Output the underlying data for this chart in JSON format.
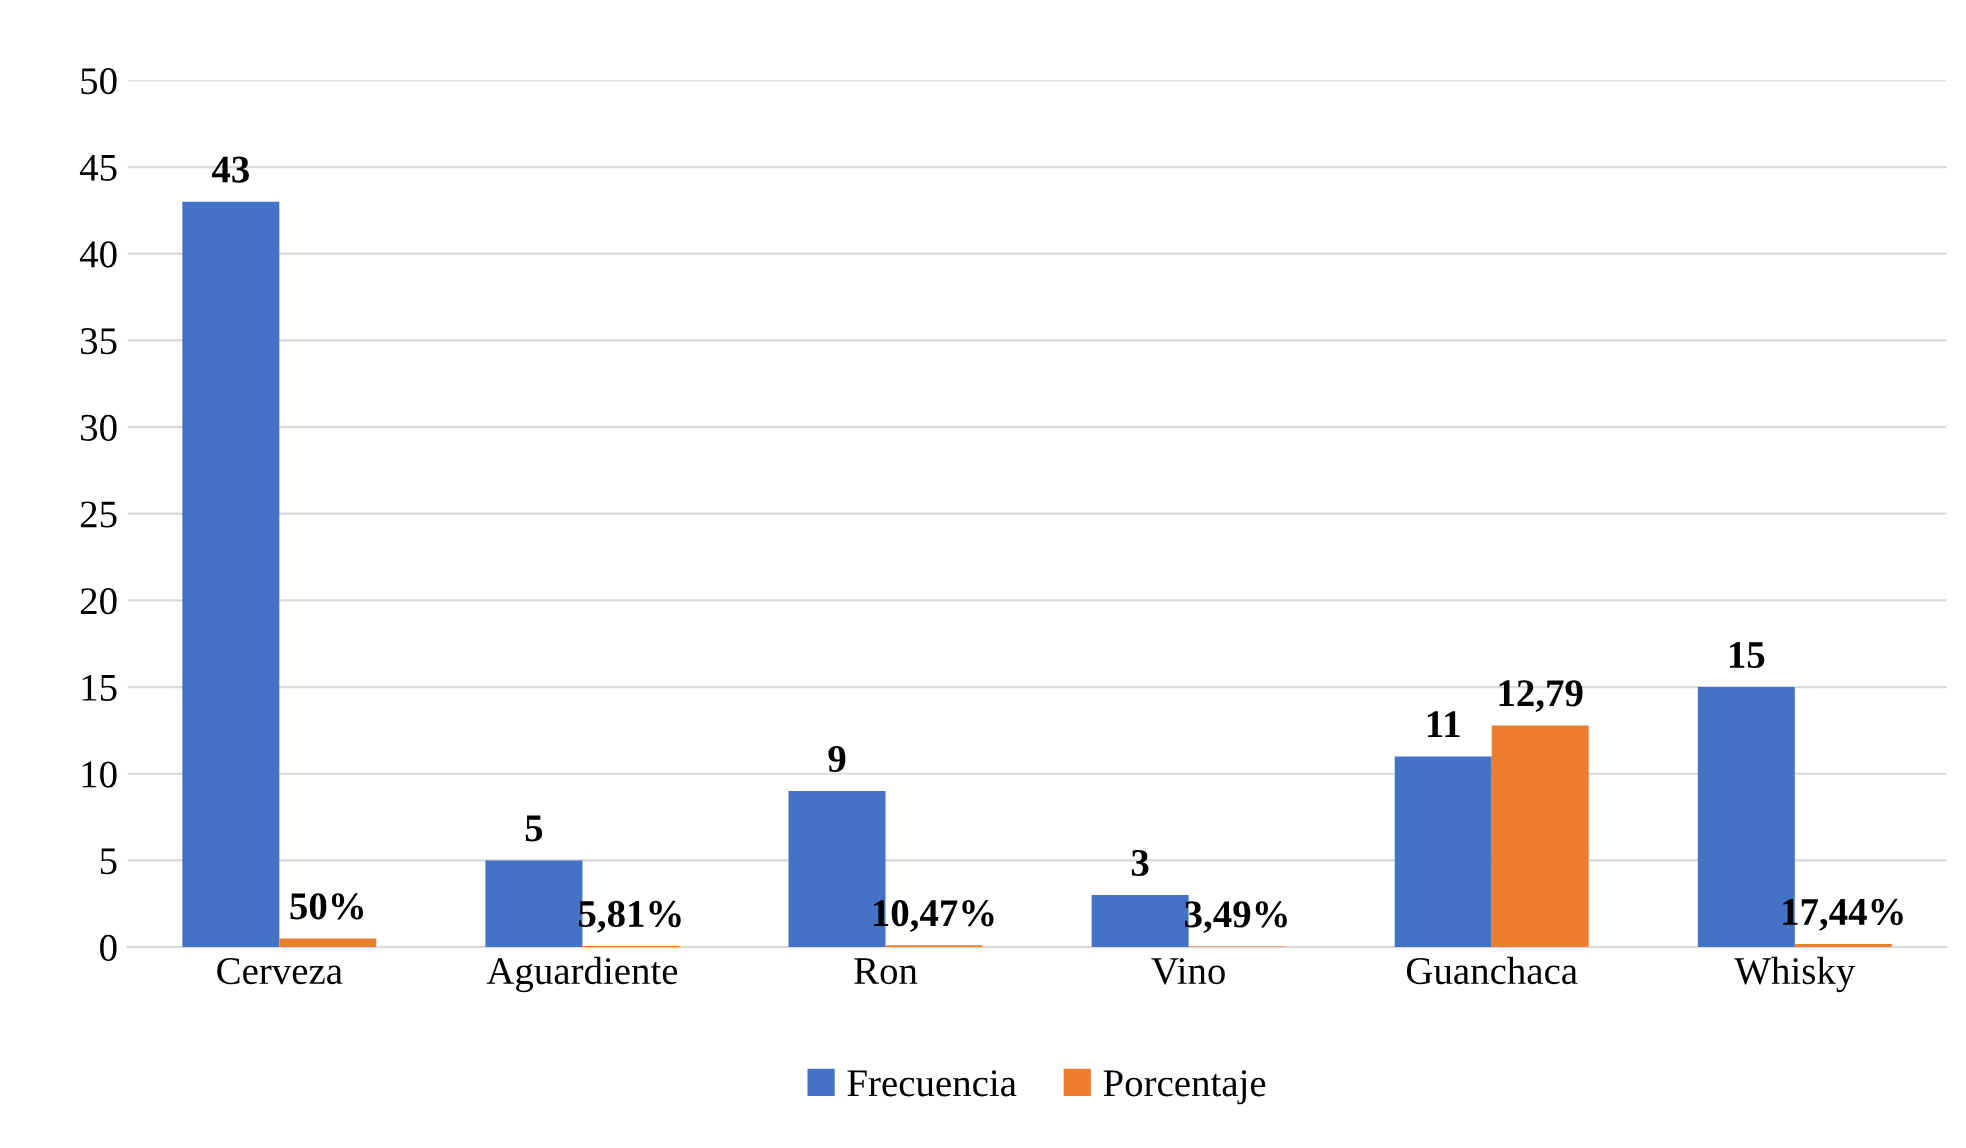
{
  "chart_data": {
    "type": "bar",
    "categories": [
      "Cerveza",
      "Aguardiente",
      "Ron",
      "Vino",
      "Guanchaca",
      "Whisky"
    ],
    "series": [
      {
        "name": "Frecuencia",
        "color": "#4472c4",
        "values": [
          43,
          5,
          9,
          3,
          11,
          15
        ],
        "value_labels": [
          "43",
          "5",
          "9",
          "3",
          "11",
          "15"
        ]
      },
      {
        "name": "Porcentaje",
        "color": "#ed7d31",
        "values": [
          0.5,
          0.0581,
          0.1047,
          0.0349,
          12.79,
          0.1744
        ],
        "value_labels": [
          "50%",
          "5,81%",
          "10,47%",
          "3,49%",
          "12,79",
          "17,44%"
        ]
      }
    ],
    "ylim": [
      0,
      50
    ],
    "yticks": [
      0,
      5,
      10,
      15,
      20,
      25,
      30,
      35,
      40,
      45,
      50
    ],
    "grid": "y",
    "legend": "bottom"
  }
}
